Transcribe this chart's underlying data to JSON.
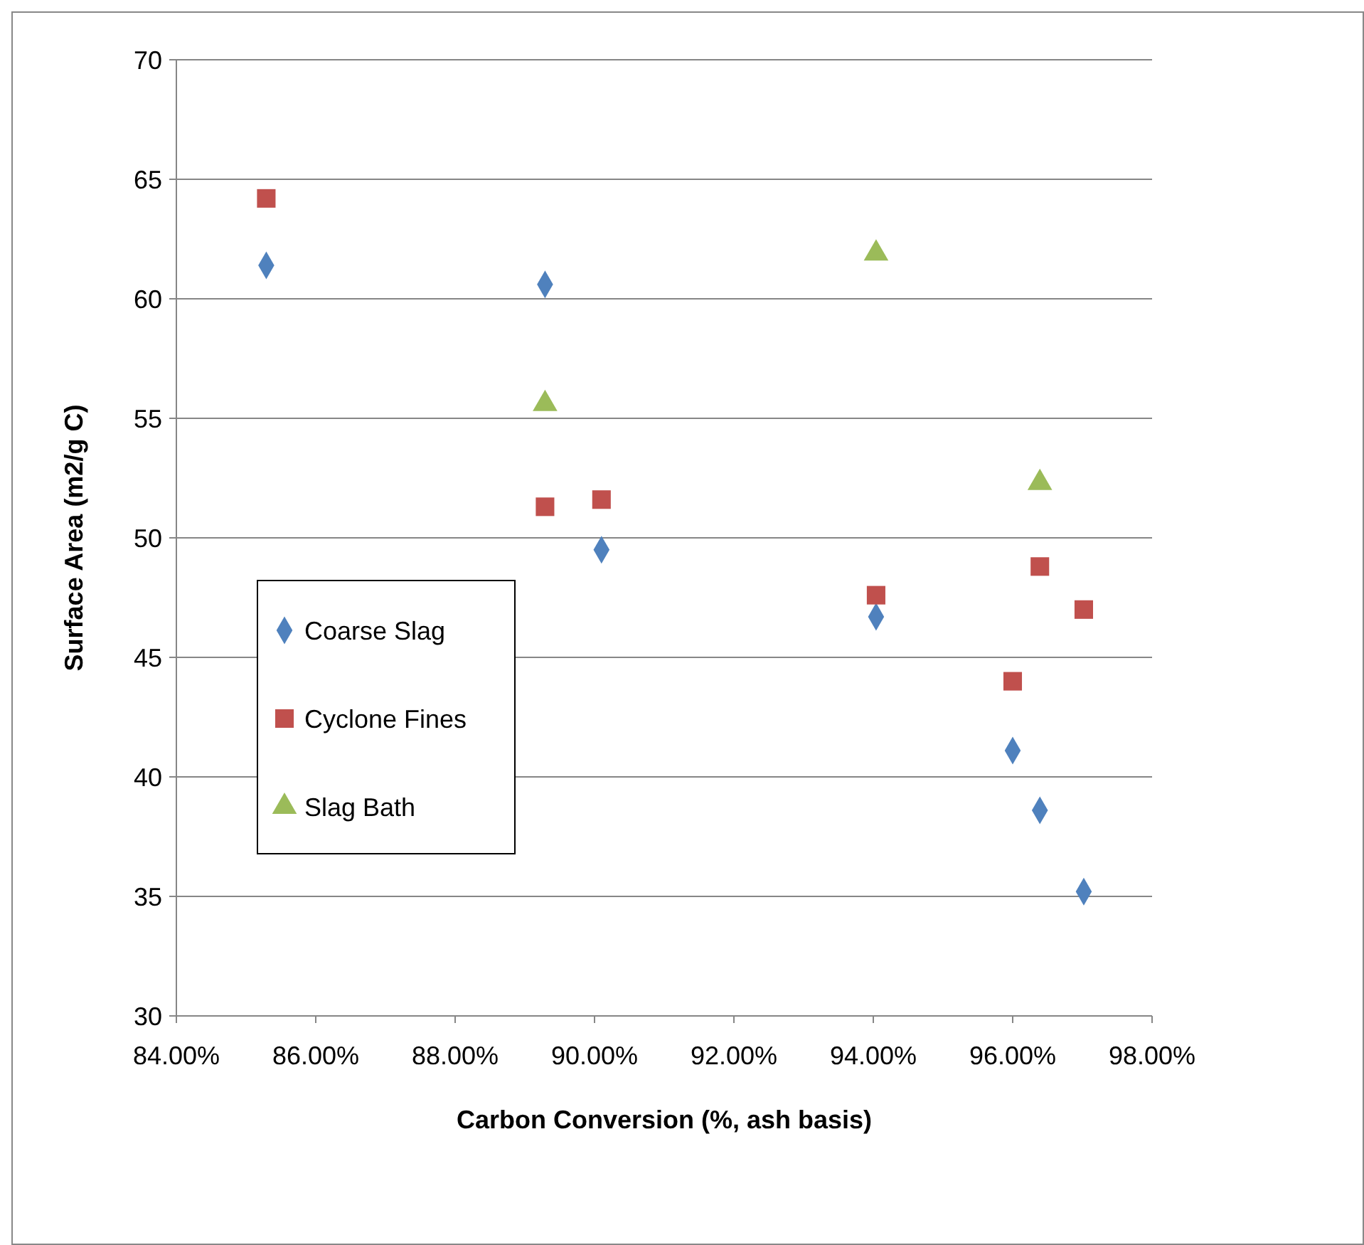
{
  "chart_data": {
    "type": "scatter",
    "xlabel": "Carbon Conversion (%, ash basis)",
    "ylabel": "Surface Area (m2/g C)",
    "xlim": [
      84,
      98
    ],
    "xticks": [
      {
        "value": 84,
        "label": "84.00%"
      },
      {
        "value": 86,
        "label": "86.00%"
      },
      {
        "value": 88,
        "label": "88.00%"
      },
      {
        "value": 90,
        "label": "90.00%"
      },
      {
        "value": 92,
        "label": "92.00%"
      },
      {
        "value": 94,
        "label": "94.00%"
      },
      {
        "value": 96,
        "label": "96.00%"
      },
      {
        "value": 98,
        "label": "98.00%"
      }
    ],
    "ylim": [
      30,
      70
    ],
    "yticks": [
      30,
      35,
      40,
      45,
      50,
      55,
      60,
      65,
      70
    ],
    "grid": "y",
    "legend": "left",
    "series": [
      {
        "name": "Coarse Slag",
        "color": "#4f81bd",
        "marker": "diamond",
        "x": [
          85.29,
          89.29,
          90.1,
          94.04,
          96.0,
          96.39,
          97.02
        ],
        "values": [
          61.4,
          60.6,
          49.5,
          46.7,
          41.1,
          38.6,
          35.2
        ]
      },
      {
        "name": "Cyclone Fines",
        "color": "#c0504d",
        "marker": "square",
        "x": [
          85.29,
          89.29,
          90.1,
          94.04,
          96.0,
          96.39,
          97.02
        ],
        "values": [
          64.2,
          51.3,
          51.6,
          47.6,
          44.0,
          48.8,
          47.0
        ]
      },
      {
        "name": "Slag Bath",
        "color": "#9bbb59",
        "marker": "triangle",
        "x": [
          89.29,
          94.04,
          96.39
        ],
        "values": [
          55.6,
          61.9,
          52.3
        ]
      }
    ]
  }
}
